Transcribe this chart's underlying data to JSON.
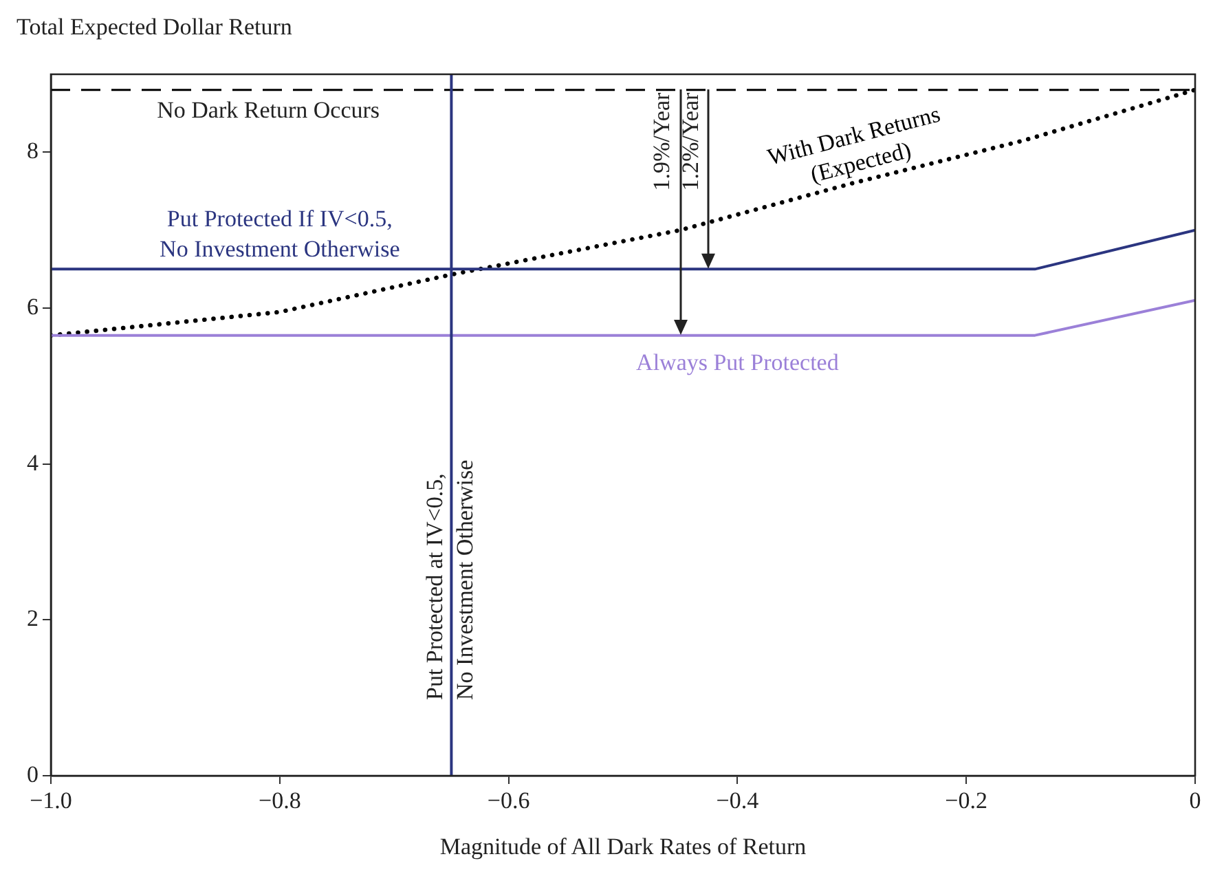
{
  "chart_data": {
    "type": "line",
    "ylabel": "Total Expected Dollar Return",
    "xlabel": "Magnitude of All Dark Rates of Return",
    "xlim": [
      -1,
      0
    ],
    "xticks": [
      {
        "value": -1,
        "label": "−1.0"
      },
      {
        "value": -0.8,
        "label": "−0.8"
      },
      {
        "value": -0.6,
        "label": "−0.6"
      },
      {
        "value": -0.4,
        "label": "−0.4"
      },
      {
        "value": -0.2,
        "label": "−0.2"
      },
      {
        "value": 0,
        "label": "0"
      }
    ],
    "ylim": [
      0,
      9
    ],
    "yticks": [
      0,
      2,
      4,
      6,
      8
    ],
    "grid": false,
    "legend": false,
    "marker": "none",
    "series": [
      {
        "name": "Put Protected If IV<0.5,\nNo Investment Otherwise",
        "color": "#2b3580",
        "x": [
          -1,
          -0.14,
          0
        ],
        "values": [
          6.5,
          6.5,
          7.0
        ],
        "line_style": "solid"
      },
      {
        "name": "Always Put Protected",
        "color": "#9b80d8",
        "x": [
          -1,
          -0.14,
          0
        ],
        "values": [
          5.65,
          5.65,
          6.1
        ],
        "line_style": "solid"
      },
      {
        "name": "With Dark Returns\n(Expected)",
        "color": "#000000",
        "x": [
          -1,
          -0.8,
          -0.65,
          -0.45,
          -0.3,
          -0.15,
          0
        ],
        "values": [
          5.65,
          5.95,
          6.43,
          7.0,
          7.6,
          8.15,
          8.8
        ],
        "line_style": "dotted"
      }
    ],
    "ref_lines": [
      {
        "axis": "y",
        "value": 8.8,
        "label": "No Dark Return Occurs",
        "color": "#000000",
        "line_style": "dashed"
      },
      {
        "axis": "x",
        "value": -0.65,
        "label": "Put Protected at IV<0.5,\nNo Investment Otherwise",
        "color": "#2b3580",
        "line_style": "solid"
      }
    ],
    "annotations": [
      {
        "text": "1.9%/Year",
        "x": -0.45,
        "y": 5.65
      },
      {
        "text": "1.2%/Year",
        "x": -0.425,
        "y": 6.5
      }
    ]
  }
}
